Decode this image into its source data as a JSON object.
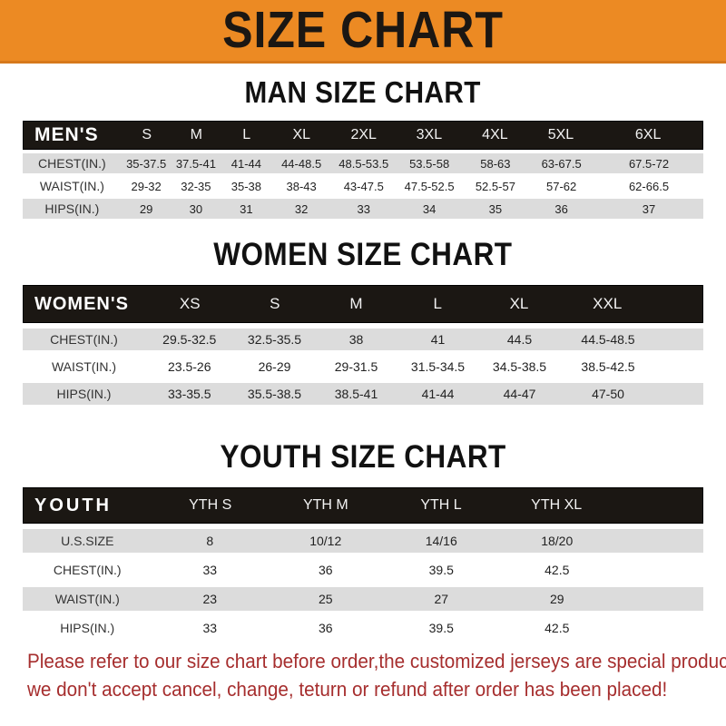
{
  "banner": {
    "title": "SIZE CHART",
    "background_color": "#EC8A23",
    "text_color": "#1B1713"
  },
  "sections": {
    "men": {
      "heading": "MAN SIZE CHART",
      "header": [
        "MEN'S",
        "S",
        "M",
        "L",
        "XL",
        "2XL",
        "3XL",
        "4XL",
        "5XL",
        "6XL"
      ],
      "rows": [
        {
          "label": "CHEST(IN.)",
          "values": [
            "35-37.5",
            "37.5-41",
            "41-44",
            "44-48.5",
            "48.5-53.5",
            "53.5-58",
            "58-63",
            "63-67.5",
            "67.5-72"
          ]
        },
        {
          "label": "WAIST(IN.)",
          "values": [
            "29-32",
            "32-35",
            "35-38",
            "38-43",
            "43-47.5",
            "47.5-52.5",
            "52.5-57",
            "57-62",
            "62-66.5"
          ]
        },
        {
          "label": "HIPS(IN.)",
          "values": [
            "29",
            "30",
            "31",
            "32",
            "33",
            "34",
            "35",
            "36",
            "37"
          ]
        }
      ]
    },
    "women": {
      "heading": "WOMEN SIZE CHART",
      "header": [
        "WOMEN'S",
        "XS",
        "S",
        "M",
        "L",
        "XL",
        "XXL"
      ],
      "rows": [
        {
          "label": "CHEST(IN.)",
          "values": [
            "29.5-32.5",
            "32.5-35.5",
            "38",
            "41",
            "44.5",
            "44.5-48.5"
          ]
        },
        {
          "label": "WAIST(IN.)",
          "values": [
            "23.5-26",
            "26-29",
            "29-31.5",
            "31.5-34.5",
            "34.5-38.5",
            "38.5-42.5"
          ]
        },
        {
          "label": "HIPS(IN.)",
          "values": [
            "33-35.5",
            "35.5-38.5",
            "38.5-41",
            "41-44",
            "44-47",
            "47-50"
          ]
        }
      ]
    },
    "youth": {
      "heading": "YOUTH SIZE CHART",
      "header": [
        "YOUTH",
        "YTH S",
        "YTH M",
        "YTH L",
        "YTH XL"
      ],
      "rows": [
        {
          "label": "U.S.SIZE",
          "values": [
            "8",
            "10/12",
            "14/16",
            "18/20"
          ]
        },
        {
          "label": "CHEST(IN.)",
          "values": [
            "33",
            "36",
            "39.5",
            "42.5"
          ]
        },
        {
          "label": "WAIST(IN.)",
          "values": [
            "23",
            "25",
            "27",
            "29"
          ]
        },
        {
          "label": "HIPS(IN.)",
          "values": [
            "33",
            "36",
            "39.5",
            "42.5"
          ]
        }
      ]
    }
  },
  "note": {
    "line1": "Please refer to our size chart before order,the customized jerseys are special products,",
    "line2": "we don't accept cancel, change, teturn or refund after order has been placed!",
    "color": "#A62E2E"
  },
  "colors": {
    "header_band": "#1B1713",
    "row_stripe": "#DCDCDC",
    "row_alt": "#FFFFFF",
    "heading_text": "#111111"
  }
}
